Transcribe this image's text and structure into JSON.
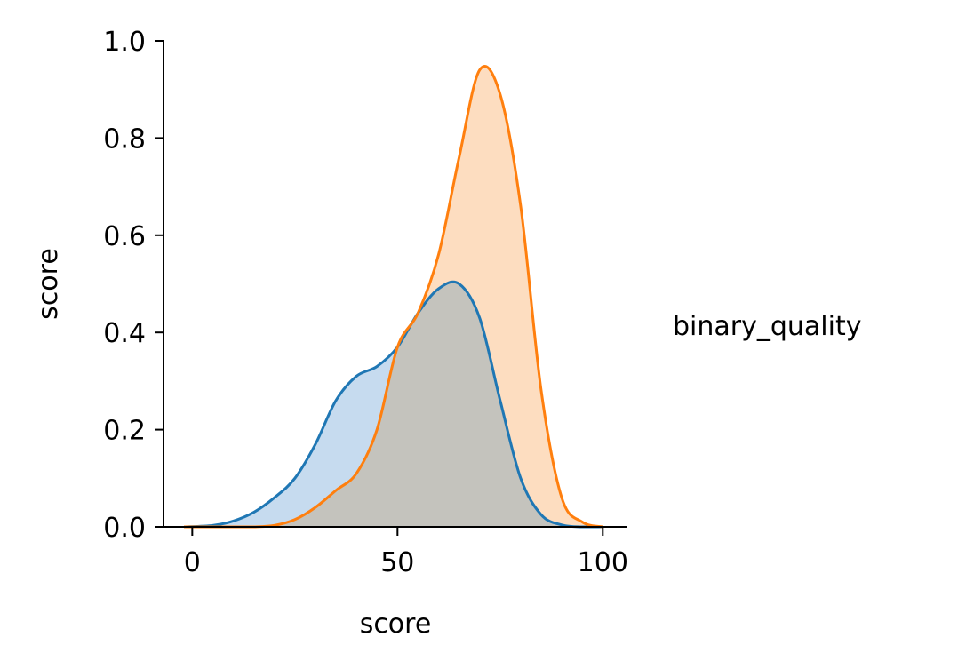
{
  "chart_data": {
    "type": "area",
    "xlabel": "score",
    "ylabel": "score",
    "xlim": [
      -7,
      106
    ],
    "ylim": [
      0,
      1.0
    ],
    "x_ticks": [
      0,
      50,
      100
    ],
    "y_ticks": [
      0.0,
      0.2,
      0.4,
      0.6,
      0.8,
      1.0
    ],
    "x_tick_labels": [
      "0",
      "50",
      "100"
    ],
    "y_tick_labels": [
      "0.0",
      "0.2",
      "0.4",
      "0.6",
      "0.8",
      "1.0"
    ],
    "grid": false,
    "legend": {
      "title": "binary_quality",
      "placement": "right",
      "entries": []
    },
    "series": [
      {
        "color": "#1f77b4",
        "fill_color": "#c6dbef",
        "x": [
          -2,
          5,
          10,
          15,
          20,
          25,
          30,
          35,
          40,
          45,
          50,
          55,
          60,
          65,
          70,
          75,
          80,
          85,
          90,
          95,
          100
        ],
        "y": [
          0.0,
          0.003,
          0.012,
          0.03,
          0.06,
          0.1,
          0.17,
          0.26,
          0.31,
          0.33,
          0.37,
          0.44,
          0.49,
          0.5,
          0.43,
          0.26,
          0.1,
          0.025,
          0.004,
          0.0,
          0.0
        ]
      },
      {
        "color": "#ff7f0e",
        "fill_color": "#fdddc0",
        "x": [
          -2,
          5,
          10,
          15,
          20,
          25,
          30,
          35,
          40,
          45,
          50,
          55,
          60,
          65,
          70,
          75,
          80,
          85,
          90,
          95,
          100
        ],
        "y": [
          0.0,
          0.0,
          0.0,
          0.0,
          0.003,
          0.015,
          0.04,
          0.075,
          0.11,
          0.2,
          0.37,
          0.44,
          0.56,
          0.76,
          0.94,
          0.89,
          0.66,
          0.28,
          0.06,
          0.01,
          0.0
        ]
      }
    ],
    "overlap_fill_color": "#c4c3bd"
  }
}
